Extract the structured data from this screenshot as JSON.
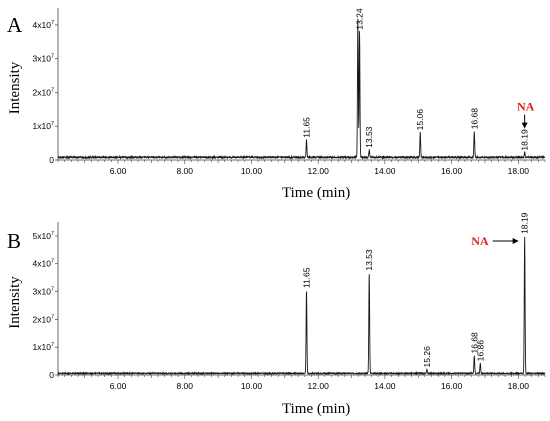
{
  "chart_data": [
    {
      "type": "line",
      "panel_label": "A",
      "xlabel": "Time (min)",
      "ylabel": "Intensity",
      "xlim": [
        4.2,
        18.8
      ],
      "ylim": [
        0,
        45000000
      ],
      "x_ticks": [
        {
          "value": 6,
          "label": "6.00"
        },
        {
          "value": 8,
          "label": "8.00"
        },
        {
          "value": 10,
          "label": "10.00"
        },
        {
          "value": 12,
          "label": "12.00"
        },
        {
          "value": 14,
          "label": "14.00"
        },
        {
          "value": 16,
          "label": "16.00"
        },
        {
          "value": 18,
          "label": "18.00"
        }
      ],
      "y_ticks": [
        {
          "value": 0,
          "base": "0",
          "exp": ""
        },
        {
          "value": 10000000,
          "base": "1x10",
          "exp": "7"
        },
        {
          "value": 20000000,
          "base": "2x10",
          "exp": "7"
        },
        {
          "value": 30000000,
          "base": "3x10",
          "exp": "7"
        },
        {
          "value": 40000000,
          "base": "4x10",
          "exp": "7"
        }
      ],
      "baseline": 800000,
      "peaks": [
        {
          "x": 11.65,
          "y": 6000000,
          "label": "11.65"
        },
        {
          "x": 13.19,
          "y": 42000000,
          "label": ""
        },
        {
          "x": 13.24,
          "y": 38000000,
          "label": "13.24"
        },
        {
          "x": 13.53,
          "y": 3000000,
          "label": "13.53"
        },
        {
          "x": 15.06,
          "y": 8200000,
          "label": "15.06"
        },
        {
          "x": 16.68,
          "y": 8500000,
          "label": "16.68"
        },
        {
          "x": 18.19,
          "y": 2200000,
          "label": "18.19"
        }
      ],
      "annotation": {
        "text": "NA",
        "x": 18.19,
        "color": "#e0201b"
      }
    },
    {
      "type": "line",
      "panel_label": "B",
      "xlabel": "Time (min)",
      "ylabel": "Intensity",
      "xlim": [
        4.2,
        18.8
      ],
      "ylim": [
        0,
        55000000
      ],
      "x_ticks": [
        {
          "value": 6,
          "label": "6.00"
        },
        {
          "value": 8,
          "label": "8.00"
        },
        {
          "value": 10,
          "label": "10.00"
        },
        {
          "value": 12,
          "label": "12.00"
        },
        {
          "value": 14,
          "label": "14.00"
        },
        {
          "value": 16,
          "label": "16.00"
        },
        {
          "value": 18,
          "label": "18.00"
        }
      ],
      "y_ticks": [
        {
          "value": 0,
          "base": "0",
          "exp": ""
        },
        {
          "value": 10000000,
          "base": "1x10",
          "exp": "7"
        },
        {
          "value": 20000000,
          "base": "2x10",
          "exp": "7"
        },
        {
          "value": 30000000,
          "base": "3x10",
          "exp": "7"
        },
        {
          "value": 40000000,
          "base": "4x10",
          "exp": "7"
        },
        {
          "value": 50000000,
          "base": "5x10",
          "exp": "7"
        }
      ],
      "baseline": 600000,
      "peaks": [
        {
          "x": 11.65,
          "y": 30500000,
          "label": "11.65"
        },
        {
          "x": 13.53,
          "y": 36800000,
          "label": "13.53"
        },
        {
          "x": 15.26,
          "y": 2000000,
          "label": "15.26"
        },
        {
          "x": 16.68,
          "y": 7000000,
          "label": "16.68"
        },
        {
          "x": 16.86,
          "y": 4200000,
          "label": "16.86"
        },
        {
          "x": 18.19,
          "y": 50000000,
          "label": "18.19"
        }
      ],
      "annotation": {
        "text": "NA",
        "x": 18.19,
        "color": "#e0201b"
      }
    }
  ]
}
